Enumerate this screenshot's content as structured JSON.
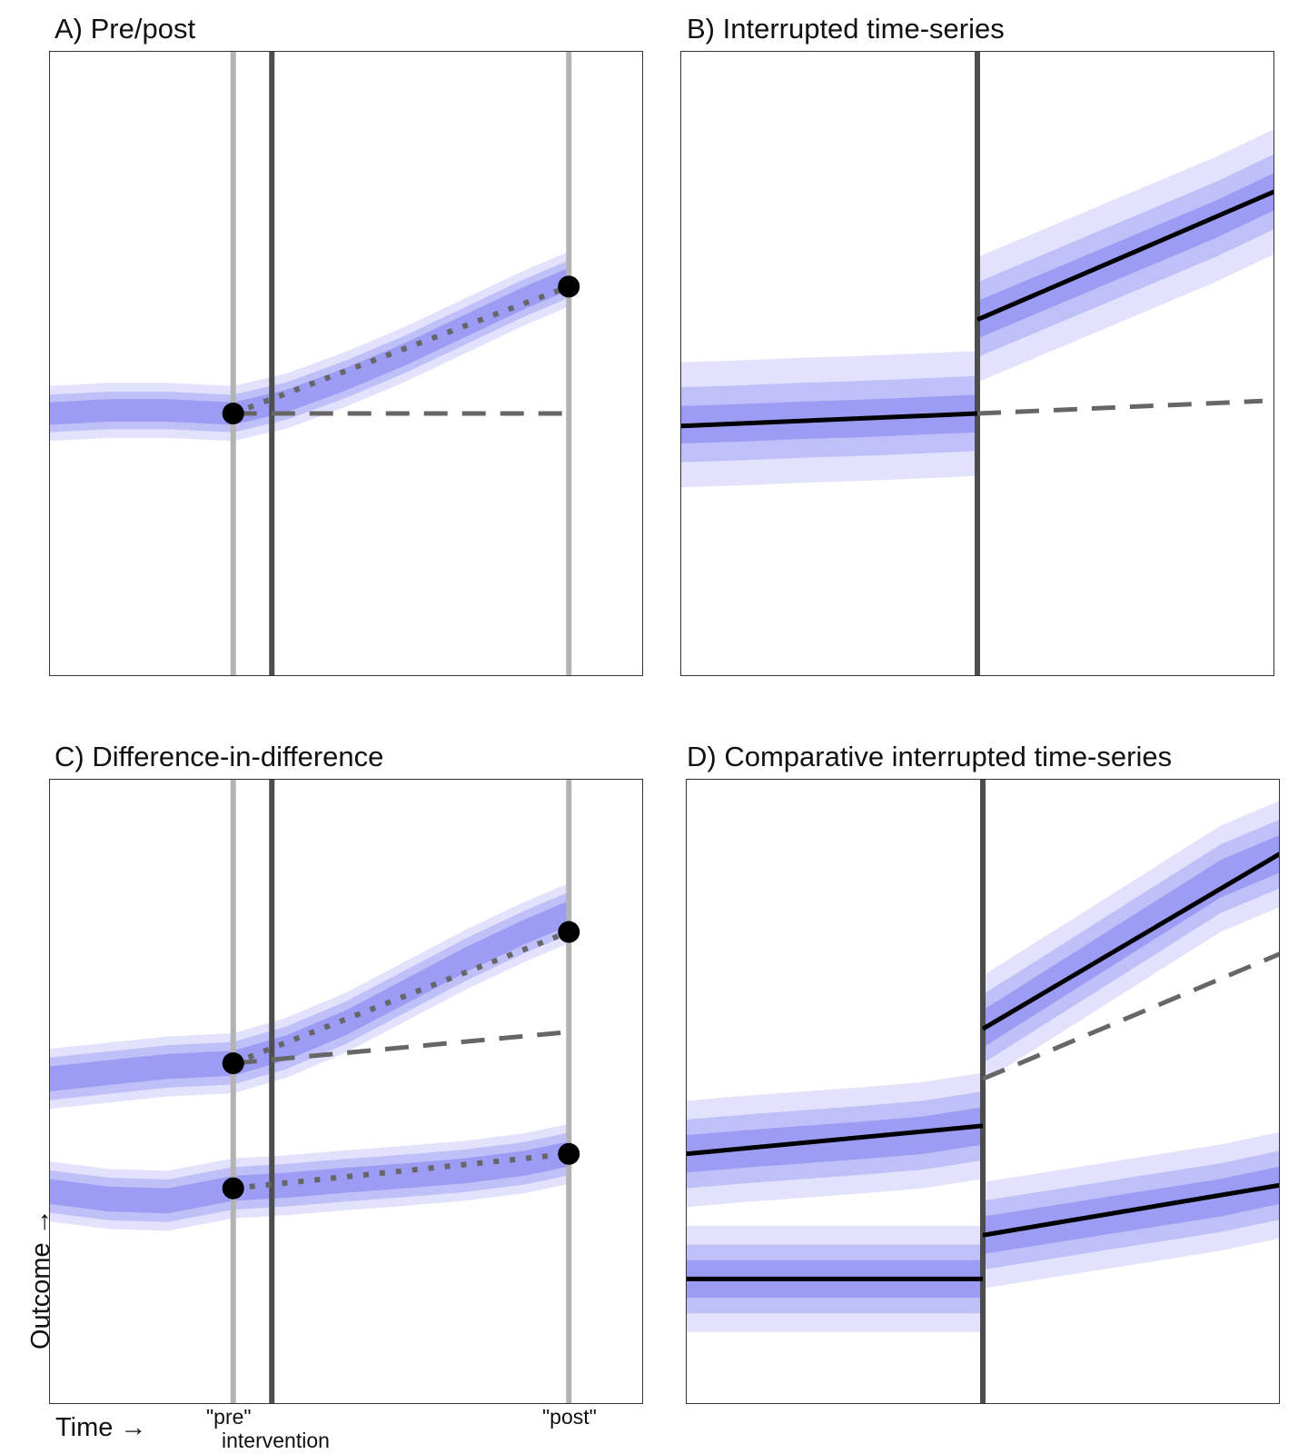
{
  "axis": {
    "x_label": "Time →",
    "y_label": "Outcome →",
    "pre_label": "\"pre\"",
    "post_label": "\"post\"",
    "intervention_label": "intervention"
  },
  "colors": {
    "band_inner": "#9c9cf5",
    "band_mid": "#c0c0f8",
    "band_outer": "#e2e2fc",
    "intervention_line": "#4d4d4d",
    "timepoint_line": "#b3b3b3",
    "counterfactual": "#666666",
    "fit_line": "#000000",
    "point": "#000000"
  },
  "chart_data": [
    {
      "id": "A",
      "title": "A) Pre/post",
      "type": "line",
      "xlim": [
        0,
        100
      ],
      "ylim": [
        0,
        100
      ],
      "grid": false,
      "intervention_x": 37.5,
      "timepoints": [
        31,
        87.5
      ],
      "series": [
        {
          "x": [
            0,
            10,
            20,
            31,
            40,
            50,
            60,
            70,
            80,
            87.5
          ],
          "y": [
            42,
            42.5,
            42.5,
            42,
            44,
            47.5,
            51.5,
            56,
            60.5,
            63.5
          ],
          "band": [
            1.8,
            3,
            4.4
          ],
          "fit": {
            "type": "points",
            "x": [
              31,
              87.5
            ],
            "y": [
              42,
              62.3
            ]
          },
          "counterfactual": {
            "x": [
              31,
              87.5
            ],
            "y": [
              42,
              42
            ]
          }
        }
      ]
    },
    {
      "id": "B",
      "title": "B) Interrupted time-series",
      "type": "line",
      "xlim": [
        0,
        100
      ],
      "ylim": [
        0,
        100
      ],
      "grid": false,
      "intervention_x": 50,
      "timepoints": [],
      "series": [
        {
          "x": [
            0,
            10,
            20,
            30,
            40,
            45,
            50
          ],
          "y": [
            40.2,
            40.5,
            40.9,
            41.2,
            41.6,
            41.8,
            42
          ],
          "band": [
            3,
            6,
            10
          ],
          "fit": {
            "type": "line",
            "x": [
              0,
              50
            ],
            "y": [
              40,
              42
            ]
          },
          "counterfactual": {
            "x": [
              50,
              98
            ],
            "y": [
              42,
              44
            ]
          }
        },
        {
          "x": [
            50,
            60,
            70,
            80,
            90,
            100
          ],
          "y": [
            57,
            61,
            65,
            69,
            73,
            77.5
          ],
          "band": [
            3,
            6,
            10
          ],
          "fit": {
            "type": "line",
            "x": [
              50,
              100
            ],
            "y": [
              57,
              77.5
            ]
          }
        }
      ]
    },
    {
      "id": "C",
      "title": "C) Difference-in-difference",
      "type": "line",
      "xlim": [
        0,
        100
      ],
      "ylim": [
        0,
        100
      ],
      "grid": false,
      "intervention_x": 37.5,
      "timepoints": [
        31,
        87.5
      ],
      "series": [
        {
          "x": [
            0,
            10,
            20,
            31,
            40,
            50,
            60,
            70,
            80,
            87.5
          ],
          "y": [
            52,
            53,
            54,
            54.5,
            57,
            61,
            66,
            71,
            75.5,
            78.5
          ],
          "band": [
            2,
            3.4,
            4.8
          ],
          "fit": {
            "type": "points",
            "x": [
              31,
              87.5
            ],
            "y": [
              54.5,
              75.5
            ]
          },
          "counterfactual": {
            "x": [
              31,
              87.5
            ],
            "y": [
              54.5,
              59.5
            ]
          }
        },
        {
          "x": [
            0,
            10,
            20,
            31,
            40,
            50,
            60,
            70,
            80,
            87.5
          ],
          "y": [
            34,
            32.8,
            32.5,
            34.5,
            35,
            35.8,
            36.5,
            37.3,
            38.5,
            40
          ],
          "band": [
            2,
            3.4,
            4.8
          ],
          "fit": {
            "type": "points",
            "x": [
              31,
              87.5
            ],
            "y": [
              34.5,
              40
            ]
          }
        }
      ]
    },
    {
      "id": "D",
      "title": "D) Comparative interrupted time-series",
      "type": "line",
      "xlim": [
        0,
        100
      ],
      "ylim": [
        0,
        100
      ],
      "grid": false,
      "intervention_x": 50,
      "timepoints": [],
      "series": [
        {
          "x": [
            0,
            10,
            20,
            30,
            40,
            50
          ],
          "y": [
            40,
            40.8,
            41.5,
            42.2,
            43,
            44.5
          ],
          "band": [
            3,
            5.5,
            8.5
          ],
          "fit": {
            "type": "line",
            "x": [
              0,
              50
            ],
            "y": [
              40,
              44.5
            ]
          }
        },
        {
          "x": [
            0,
            10,
            20,
            30,
            40,
            50
          ],
          "y": [
            20,
            20,
            20,
            20,
            20,
            20
          ],
          "band": [
            3,
            5.5,
            8.5
          ],
          "fit": {
            "type": "line",
            "x": [
              0,
              50
            ],
            "y": [
              20,
              20
            ]
          }
        },
        {
          "x": [
            50,
            60,
            70,
            80,
            90,
            100
          ],
          "y": [
            60,
            66,
            72,
            78,
            84,
            88
          ],
          "band": [
            3,
            5.5,
            8.5
          ],
          "fit": {
            "type": "line",
            "x": [
              50,
              100
            ],
            "y": [
              60,
              88
            ]
          },
          "counterfactual": {
            "x": [
              50,
              100
            ],
            "y": [
              52,
              72
            ]
          }
        },
        {
          "x": [
            50,
            60,
            70,
            80,
            90,
            100
          ],
          "y": [
            27,
            28.5,
            30,
            31.5,
            33,
            35
          ],
          "band": [
            3,
            5.5,
            8.5
          ],
          "fit": {
            "type": "line",
            "x": [
              50,
              100
            ],
            "y": [
              27,
              35
            ]
          }
        }
      ]
    }
  ]
}
